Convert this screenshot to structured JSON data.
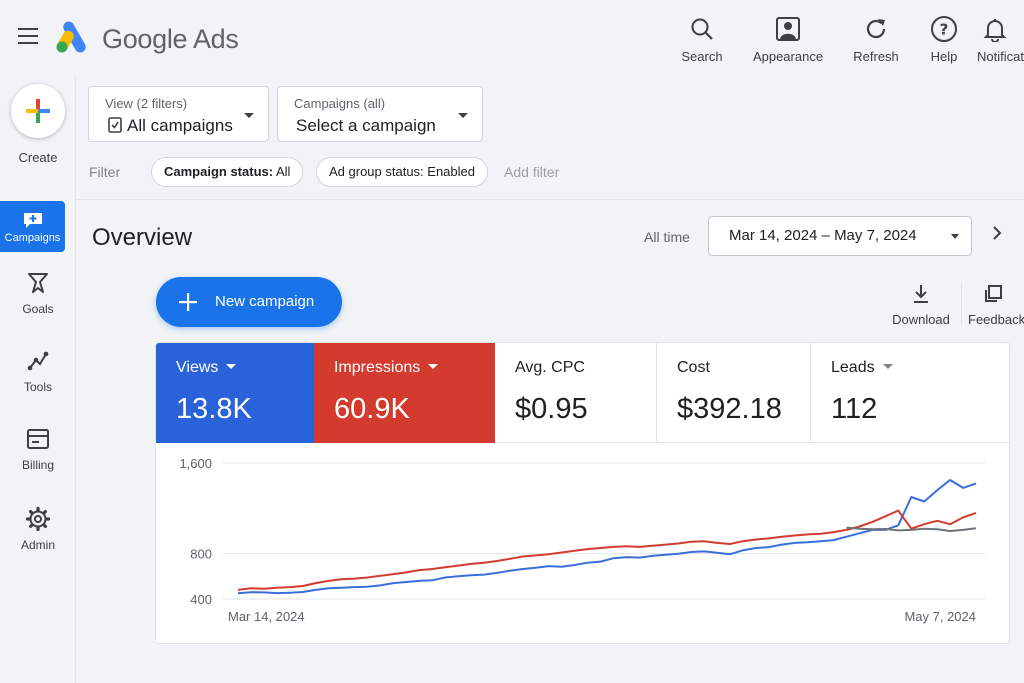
{
  "header": {
    "brand": "Google Ads",
    "buttons": [
      {
        "label": "Search",
        "icon": "search-icon"
      },
      {
        "label": "Appearance",
        "icon": "appearance-icon"
      },
      {
        "label": "Refresh",
        "icon": "refresh-icon"
      },
      {
        "label": "Help",
        "icon": "help-icon"
      },
      {
        "label": "Notifications",
        "icon": "bell-icon"
      }
    ]
  },
  "sidebar": {
    "create_label": "Create",
    "items": [
      {
        "label": "Campaigns",
        "icon": "campaigns-icon",
        "active": true
      },
      {
        "label": "Goals",
        "icon": "goals-icon"
      },
      {
        "label": "Tools",
        "icon": "tools-icon"
      },
      {
        "label": "Billing",
        "icon": "billing-icon"
      },
      {
        "label": "Admin",
        "icon": "gear-icon"
      }
    ]
  },
  "filters": {
    "view_small": "View (2 filters)",
    "view_big": "All campaigns",
    "campaign_small": "Campaigns (all)",
    "campaign_big": "Select a campaign",
    "filter_label": "Filter",
    "chip1_key": "Campaign status:",
    "chip1_val": "All",
    "chip2": "Ad group status: Enabled",
    "add_filter": "Add filter"
  },
  "overview": {
    "title": "Overview",
    "range_label": "All time",
    "date_range": "Mar 14, 2024 – May 7, 2024",
    "new_campaign": "New campaign",
    "download": "Download",
    "feedback": "Feedback"
  },
  "scorecards": [
    {
      "title": "Views",
      "value": "13.8K",
      "dropdown": true,
      "color": "#2a62d9"
    },
    {
      "title": "Impressions",
      "value": "60.9K",
      "dropdown": true,
      "color": "#d23b2e"
    },
    {
      "title": "Avg. CPC",
      "value": "$0.95",
      "dropdown": false
    },
    {
      "title": "Cost",
      "value": "$392.18",
      "dropdown": false
    },
    {
      "title": "Leads",
      "value": "112",
      "dropdown": true
    }
  ],
  "colors": {
    "accent": "#1a73e8",
    "views": "#3a6fd8",
    "impressions": "#d23b2e",
    "other": "#6d7378"
  },
  "chart_data": {
    "type": "line",
    "x_start_label": "Mar 14, 2024",
    "x_end_label": "May 7, 2024",
    "yticks": [
      "1,600",
      "800",
      "400"
    ],
    "series": [
      {
        "values": [
          450,
          460,
          458,
          452,
          455,
          462,
          480,
          495,
          500,
          505,
          508,
          520,
          540,
          550,
          560,
          565,
          590,
          600,
          610,
          615,
          630,
          650,
          665,
          675,
          690,
          685,
          700,
          720,
          730,
          760,
          770,
          765,
          780,
          790,
          800,
          815,
          820,
          808,
          795,
          830,
          850,
          858,
          880,
          895,
          900,
          910,
          920,
          950,
          980,
          1010,
          1010,
          1050,
          1300,
          1260,
          1360,
          1450,
          1380,
          1420
        ]
      },
      {
        "values": [
          480,
          495,
          490,
          500,
          505,
          515,
          540,
          560,
          575,
          580,
          590,
          605,
          620,
          635,
          655,
          665,
          680,
          695,
          710,
          720,
          735,
          755,
          775,
          785,
          795,
          810,
          825,
          840,
          850,
          860,
          865,
          860,
          870,
          880,
          890,
          905,
          910,
          895,
          885,
          910,
          925,
          935,
          950,
          960,
          970,
          975,
          990,
          1010,
          1040,
          1080,
          1130,
          1180,
          1020,
          1060,
          1090,
          1060,
          1120,
          1160
        ]
      },
      {
        "values": [
          1030,
          1020,
          1015,
          1018,
          1005,
          1010,
          1020,
          1015,
          1000,
          1010,
          1025
        ]
      }
    ]
  }
}
